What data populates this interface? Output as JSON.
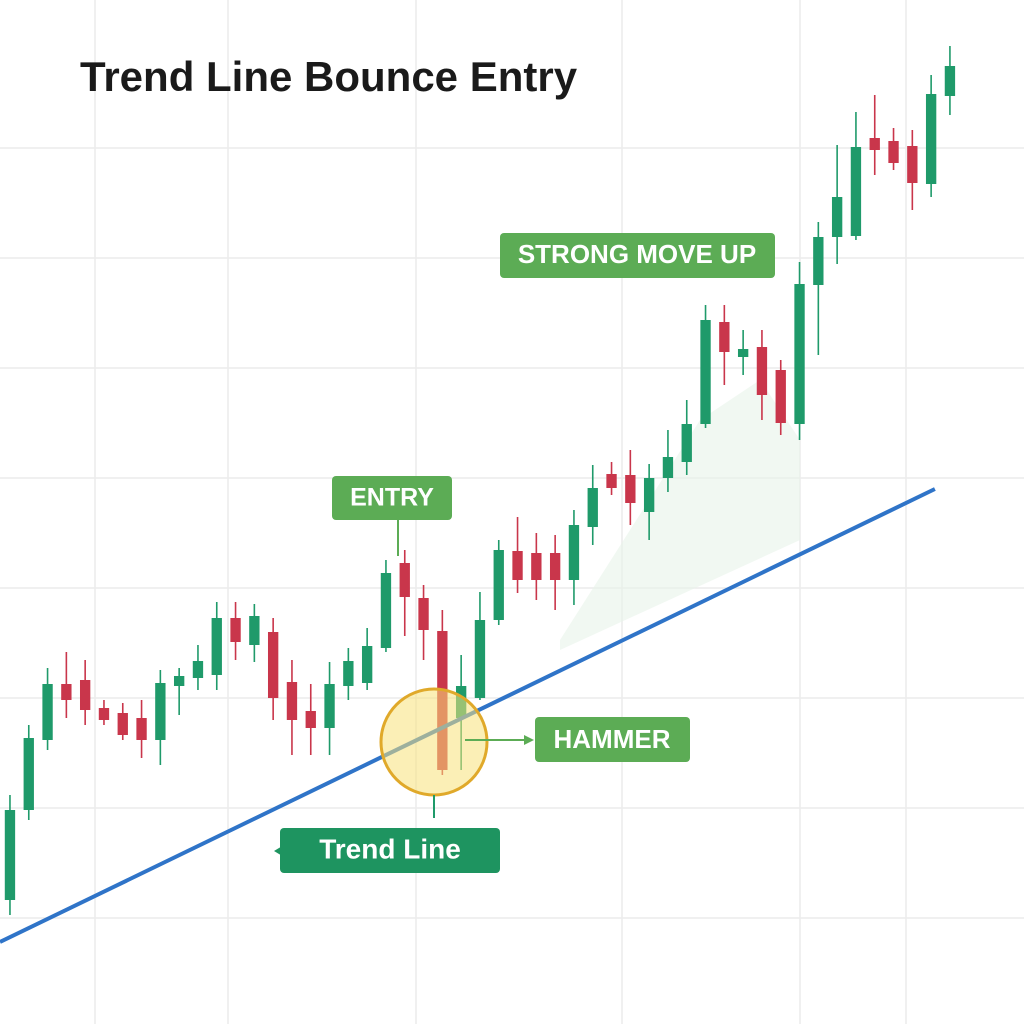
{
  "chart_data": {
    "type": "candlestick",
    "title": "Trend Line Bounce Entry",
    "x": [
      0,
      1,
      2,
      3,
      4,
      5,
      6,
      7,
      8,
      9,
      10,
      11,
      12,
      13,
      14,
      15,
      16,
      17,
      18,
      19,
      20,
      21,
      22,
      23,
      24,
      25,
      26,
      27,
      28,
      29,
      30,
      31,
      32,
      33,
      34,
      35,
      36,
      37,
      38,
      39,
      40,
      41,
      42,
      43,
      44,
      45,
      46,
      47,
      48,
      49,
      50
    ],
    "open": [
      124,
      214,
      284,
      340,
      344,
      316,
      311,
      306,
      284,
      338,
      346,
      349,
      406,
      379,
      392,
      342,
      313,
      296,
      338,
      341,
      376,
      461,
      426,
      393,
      306,
      326,
      404,
      473,
      471,
      471,
      444,
      497,
      550,
      549,
      512,
      546,
      562,
      600,
      702,
      667,
      677,
      654,
      600,
      739,
      787,
      788,
      886,
      883,
      878,
      840,
      928
    ],
    "high": [
      229,
      299,
      356,
      372,
      364,
      324,
      321,
      324,
      354,
      356,
      379,
      422,
      422,
      420,
      406,
      364,
      340,
      362,
      376,
      396,
      464,
      474,
      439,
      414,
      369,
      432,
      484,
      507,
      491,
      489,
      514,
      559,
      562,
      574,
      560,
      594,
      624,
      719,
      719,
      694,
      694,
      664,
      762,
      802,
      879,
      912,
      929,
      896,
      894,
      949,
      978
    ],
    "low": [
      109,
      204,
      274,
      306,
      299,
      299,
      284,
      266,
      259,
      309,
      334,
      334,
      364,
      362,
      304,
      269,
      269,
      269,
      324,
      334,
      372,
      388,
      364,
      249,
      254,
      324,
      399,
      431,
      424,
      414,
      419,
      479,
      529,
      499,
      484,
      532,
      549,
      596,
      639,
      649,
      604,
      589,
      584,
      669,
      760,
      784,
      849,
      854,
      814,
      827,
      909
    ],
    "close": [
      214,
      286,
      340,
      324,
      314,
      304,
      289,
      284,
      341,
      348,
      363,
      406,
      382,
      408,
      326,
      304,
      296,
      340,
      363,
      378,
      451,
      427,
      394,
      254,
      338,
      404,
      474,
      444,
      444,
      444,
      499,
      536,
      536,
      521,
      546,
      567,
      600,
      704,
      672,
      675,
      629,
      601,
      740,
      787,
      827,
      877,
      874,
      861,
      841,
      930,
      958
    ],
    "up_color": "#1f9a6a",
    "down_color": "#c9364b",
    "xlim": [
      -0.53,
      53.94
    ],
    "ylim": [
      0,
      1024
    ],
    "trend_line": {
      "x": [
        -0.53,
        49.2
      ],
      "values": [
        82,
        535
      ],
      "color": "#2f74c8"
    },
    "annotations": [
      "ENTRY",
      "STRONG MOVE UP",
      "HAMMER",
      "Trend Line"
    ]
  }
}
